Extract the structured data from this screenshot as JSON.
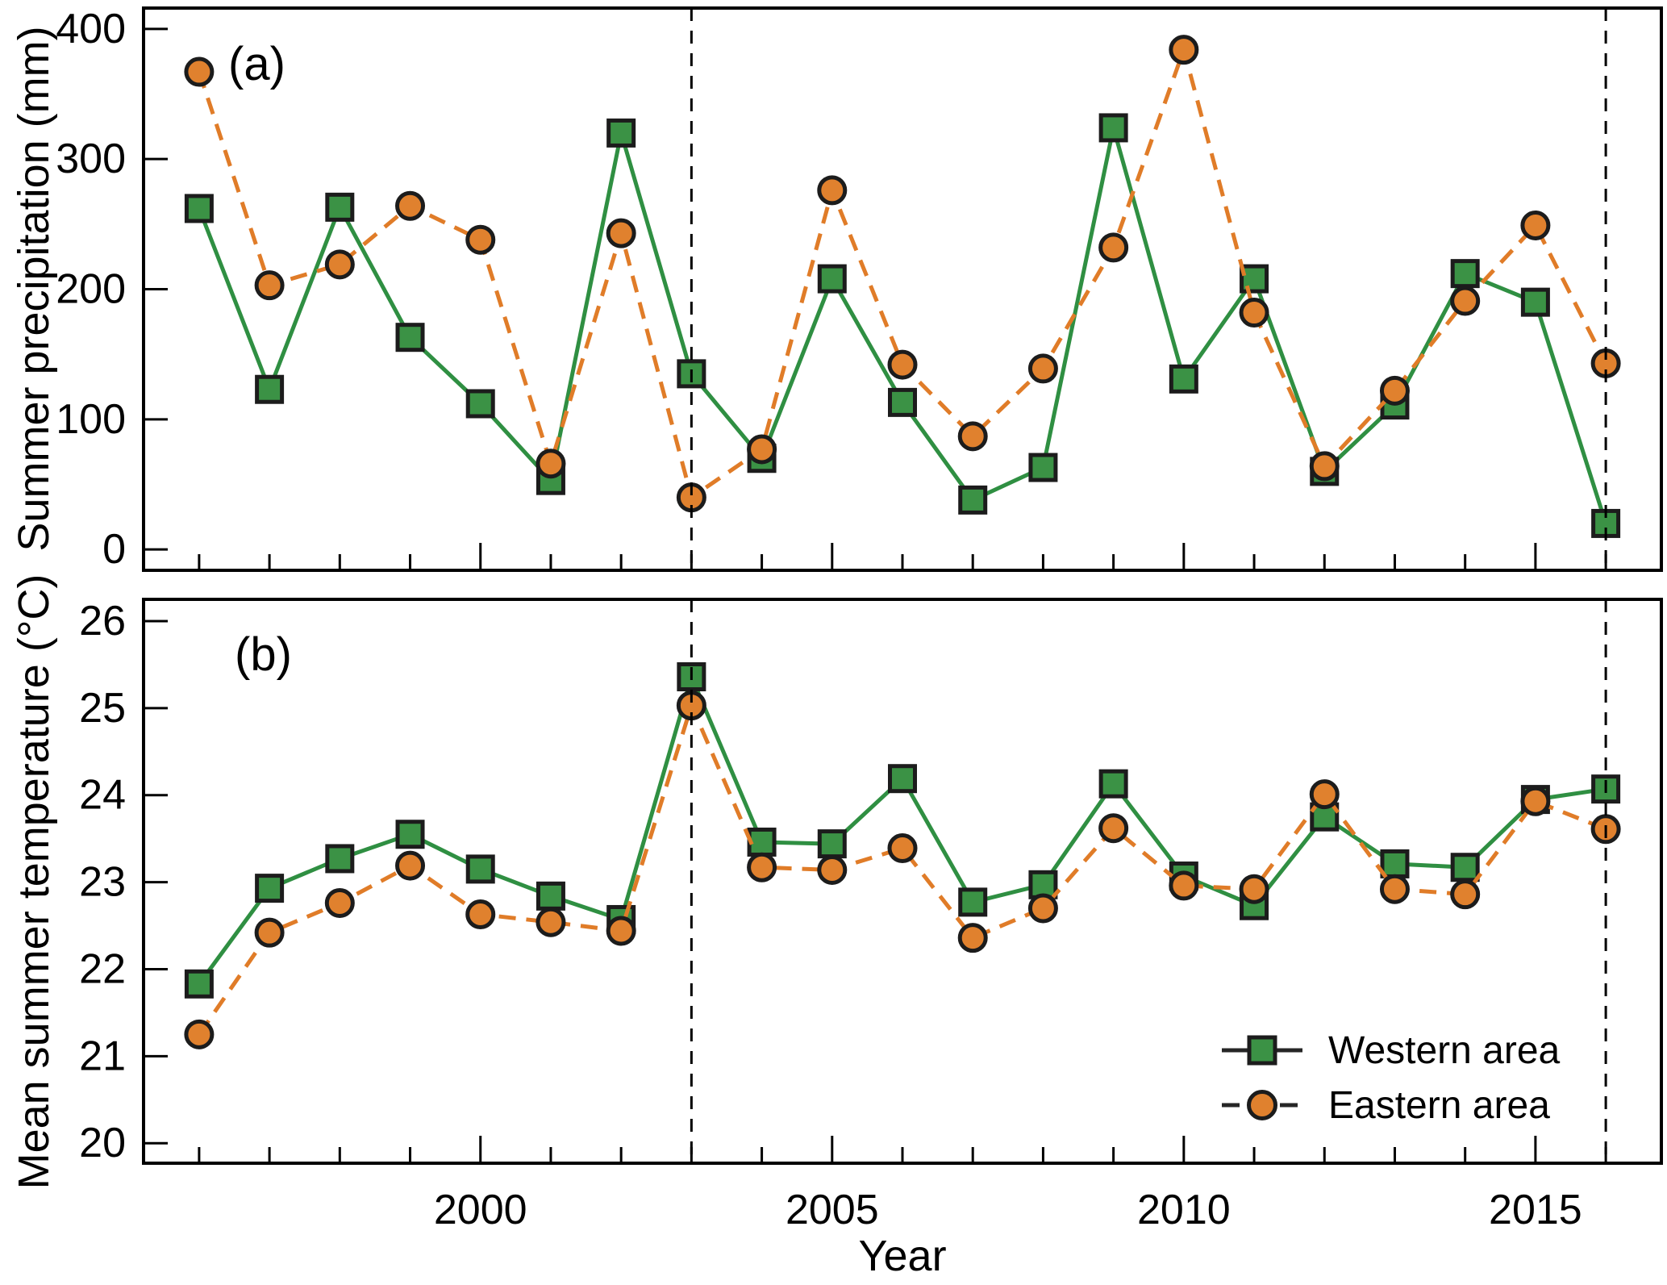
{
  "figure": {
    "panels": [
      {
        "label": "(a)"
      },
      {
        "label": "(b)"
      }
    ],
    "x_axis": {
      "label": "Year",
      "tick_labels": [
        "2000",
        "2005",
        "2010",
        "2015"
      ],
      "major_tick_years": [
        2000,
        2005,
        2010,
        2015
      ]
    },
    "legend": {
      "items": [
        {
          "label": "Western area",
          "marker": "square",
          "line": "solid"
        },
        {
          "label": "Eastern area",
          "marker": "circle",
          "line": "dashed"
        }
      ]
    },
    "colors": {
      "western_fill": "#3b9245",
      "western_line": "#2f8f42",
      "eastern_fill": "#e0812e",
      "eastern_line": "#e07c28",
      "marker_stroke": "#1c1c1c",
      "axis": "#000000",
      "legend_line": "#262626"
    }
  },
  "chart_data": [
    {
      "type": "line",
      "panel": "a",
      "title": "",
      "xlabel": "Year",
      "ylabel": "Summer precipitation (mm)",
      "x": [
        1996,
        1997,
        1998,
        1999,
        2000,
        2001,
        2002,
        2003,
        2004,
        2005,
        2006,
        2007,
        2008,
        2009,
        2010,
        2011,
        2012,
        2013,
        2014,
        2015,
        2016
      ],
      "series": [
        {
          "name": "Western area",
          "marker": "square",
          "line": "solid",
          "values": [
            262,
            123,
            263,
            163,
            112,
            53,
            320,
            135,
            70,
            208,
            113,
            38,
            63,
            324,
            131,
            208,
            60,
            111,
            212,
            190,
            20
          ]
        },
        {
          "name": "Eastern area",
          "marker": "circle",
          "line": "dashed",
          "values": [
            367,
            203,
            219,
            264,
            238,
            66,
            243,
            40,
            77,
            276,
            142,
            87,
            139,
            232,
            384,
            182,
            64,
            122,
            191,
            249,
            143
          ]
        }
      ],
      "ylim": [
        -16,
        416
      ],
      "yticks": [
        0,
        100,
        200,
        300,
        400
      ],
      "xlim": [
        1995.21,
        2016.79
      ],
      "vlines": [
        2003,
        2016
      ],
      "grid": false,
      "legend_position": "none"
    },
    {
      "type": "line",
      "panel": "b",
      "title": "",
      "xlabel": "Year",
      "ylabel": "Mean summer temperature (°C)",
      "x": [
        1996,
        1997,
        1998,
        1999,
        2000,
        2001,
        2002,
        2003,
        2004,
        2005,
        2006,
        2007,
        2008,
        2009,
        2010,
        2011,
        2012,
        2013,
        2014,
        2015,
        2016
      ],
      "series": [
        {
          "name": "Western area",
          "marker": "square",
          "line": "solid",
          "values": [
            21.83,
            22.93,
            23.27,
            23.55,
            23.15,
            22.84,
            22.57,
            25.36,
            23.46,
            23.44,
            24.19,
            22.77,
            22.97,
            24.13,
            23.07,
            22.73,
            23.75,
            23.21,
            23.17,
            23.95,
            24.07
          ]
        },
        {
          "name": "Eastern area",
          "marker": "circle",
          "line": "dashed",
          "values": [
            21.25,
            22.42,
            22.76,
            23.19,
            22.63,
            22.54,
            22.44,
            25.03,
            23.17,
            23.14,
            23.39,
            22.36,
            22.7,
            23.62,
            22.96,
            22.92,
            24.01,
            22.92,
            22.86,
            23.93,
            23.61
          ]
        }
      ],
      "ylim": [
        19.77,
        26.25
      ],
      "yticks": [
        20,
        21,
        22,
        23,
        24,
        25,
        26
      ],
      "xlim": [
        1995.21,
        2016.79
      ],
      "vlines": [
        2003,
        2016
      ],
      "grid": false,
      "legend_position": "lower right"
    }
  ]
}
